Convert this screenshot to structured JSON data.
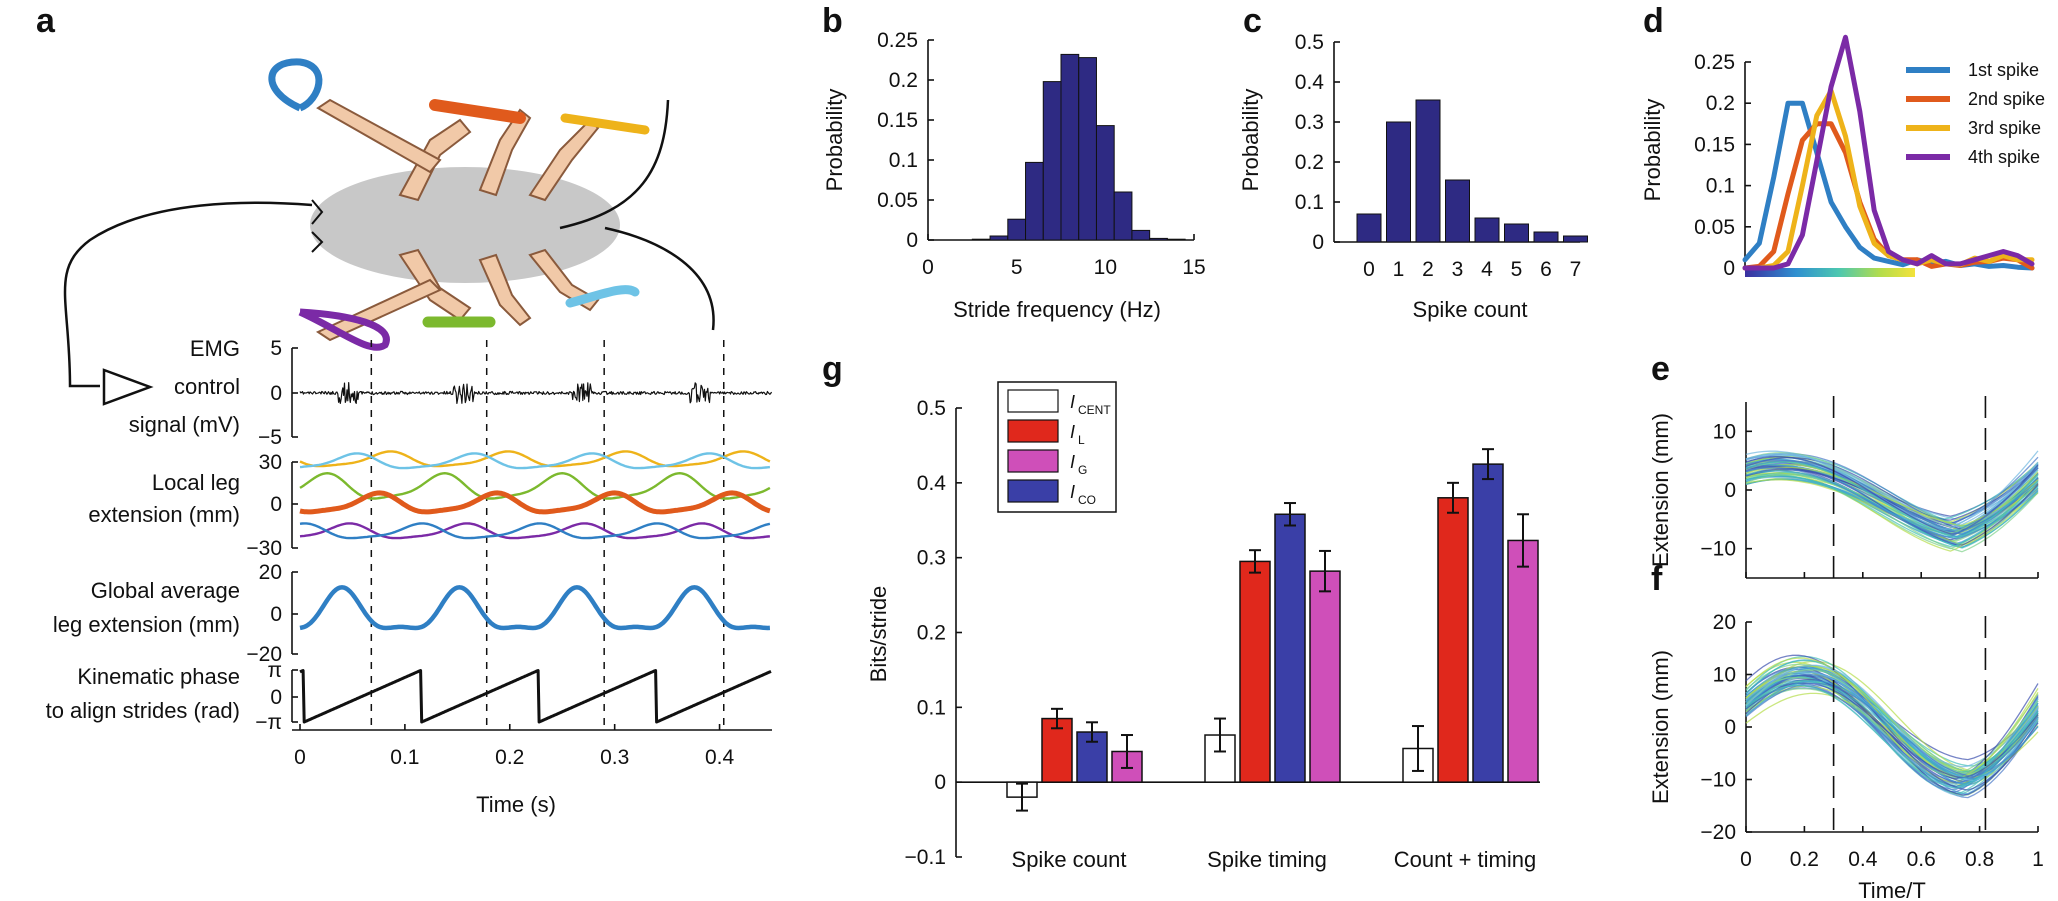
{
  "panel_labels": {
    "a": "a",
    "b": "b",
    "c": "c",
    "d": "d",
    "e": "e",
    "f": "f",
    "g": "g"
  },
  "panel_a": {
    "traces": [
      {
        "label_lines": [
          "EMG",
          "control",
          "signal (mV)"
        ],
        "ticks": [
          "5",
          "0",
          "−5"
        ]
      },
      {
        "label_lines": [
          "Local leg",
          "extension (mm)"
        ],
        "ticks": [
          "30",
          "0",
          "−30"
        ]
      },
      {
        "label_lines": [
          "Global average",
          "leg extension (mm)"
        ],
        "ticks": [
          "20",
          "0",
          "−20"
        ]
      },
      {
        "label_lines": [
          "Kinematic phase",
          "to align strides (rad)"
        ],
        "ticks": [
          "π",
          "0",
          "−π"
        ]
      }
    ],
    "xticks": [
      "0",
      "0.1",
      "0.2",
      "0.3",
      "0.4"
    ],
    "xlabel": "Time (s)",
    "dashed_times": [
      0.068,
      0.178,
      0.29,
      0.404
    ],
    "leg_colors": [
      "#2f7fc4",
      "#e05a1c",
      "#eeb31a",
      "#7b2aa6",
      "#7cb92e",
      "#6ec3e6"
    ]
  },
  "chart_data": [
    {
      "id": "b",
      "type": "bar",
      "title": "",
      "xlabel": "Stride frequency (Hz)",
      "ylabel": "Probability",
      "xlim": [
        0,
        15
      ],
      "ylim": [
        0,
        0.25
      ],
      "xticks": [
        "0",
        "5",
        "10",
        "15"
      ],
      "yticks": [
        "0",
        "0.05",
        "0.1",
        "0.15",
        "0.2",
        "0.25"
      ],
      "x": [
        3,
        4,
        5,
        6,
        7,
        8,
        9,
        10,
        11,
        12,
        13,
        14
      ],
      "values": [
        0.001,
        0.005,
        0.026,
        0.097,
        0.198,
        0.232,
        0.228,
        0.143,
        0.06,
        0.012,
        0.002,
        0.001
      ],
      "color": "#2e2a83"
    },
    {
      "id": "c",
      "type": "bar",
      "title": "",
      "xlabel": "Spike count",
      "ylabel": "Probability",
      "ylim": [
        0,
        0.5
      ],
      "categories": [
        "0",
        "1",
        "2",
        "3",
        "4",
        "5",
        "6",
        "7"
      ],
      "yticks": [
        "0",
        "0.1",
        "0.2",
        "0.3",
        "0.4",
        "0.5"
      ],
      "values": [
        0.07,
        0.3,
        0.355,
        0.155,
        0.06,
        0.045,
        0.025,
        0.015
      ],
      "color": "#2e2a83"
    },
    {
      "id": "d",
      "type": "line",
      "xlabel": "",
      "ylabel": "Probability",
      "ylim": [
        0,
        0.25
      ],
      "yticks": [
        "0",
        "0.05",
        "0.1",
        "0.15",
        "0.2",
        "0.25"
      ],
      "x": [
        0,
        1,
        2,
        3,
        4,
        5,
        6,
        7,
        8,
        9,
        10,
        11,
        12,
        13,
        14,
        15,
        16,
        17,
        18,
        19,
        20
      ],
      "series": [
        {
          "name": "1st spike",
          "color": "#2f7fc4",
          "values": [
            0.01,
            0.03,
            0.11,
            0.2,
            0.2,
            0.14,
            0.08,
            0.05,
            0.025,
            0.012,
            0.008,
            0.004,
            0.01,
            0.006,
            0.008,
            0.003,
            0.005,
            0.002,
            0.003,
            0.001,
            0.0
          ]
        },
        {
          "name": "2nd spike",
          "color": "#e05a1c",
          "values": [
            0.0,
            0.002,
            0.02,
            0.09,
            0.155,
            0.175,
            0.175,
            0.14,
            0.08,
            0.035,
            0.015,
            0.01,
            0.01,
            0.002,
            0.005,
            0.003,
            0.007,
            0.008,
            0.012,
            0.01,
            0.0
          ]
        },
        {
          "name": "3rd spike",
          "color": "#eeb31a",
          "values": [
            0.0,
            0.0,
            0.003,
            0.02,
            0.1,
            0.185,
            0.215,
            0.16,
            0.075,
            0.03,
            0.015,
            0.01,
            0.005,
            0.01,
            0.005,
            0.004,
            0.012,
            0.008,
            0.015,
            0.01,
            0.01
          ]
        },
        {
          "name": "4th spike",
          "color": "#7b2aa6",
          "values": [
            0.0,
            0.0,
            0.0,
            0.005,
            0.04,
            0.13,
            0.22,
            0.28,
            0.19,
            0.07,
            0.02,
            0.01,
            0.005,
            0.015,
            0.005,
            0.005,
            0.01,
            0.015,
            0.02,
            0.015,
            0.005
          ]
        }
      ]
    },
    {
      "id": "e",
      "type": "line",
      "xlabel": "",
      "ylabel": "Extension (mm)",
      "ylim": [
        -15,
        15
      ],
      "yticks": [
        "10",
        "0",
        "−10"
      ],
      "dashed_x": [
        0.3,
        0.82
      ],
      "n_traces": 60
    },
    {
      "id": "f",
      "type": "line",
      "xlabel": "Time/T",
      "ylabel": "Extension (mm)",
      "xlim": [
        0,
        1
      ],
      "ylim": [
        -20,
        20
      ],
      "xticks": [
        "0",
        "0.2",
        "0.4",
        "0.6",
        "0.8",
        "1"
      ],
      "yticks": [
        "20",
        "10",
        "0",
        "−10",
        "−20"
      ],
      "dashed_x": [
        0.3,
        0.82
      ],
      "n_traces": 60
    },
    {
      "id": "g",
      "type": "bar",
      "xlabel": "",
      "ylabel": "Bits/stride",
      "ylim": [
        -0.1,
        0.5
      ],
      "yticks": [
        "0.5",
        "0.4",
        "0.3",
        "0.2",
        "0.1",
        "0",
        "−0.1"
      ],
      "categories": [
        "Spike count",
        "Spike timing",
        "Count + timing"
      ],
      "series": [
        {
          "name": "I",
          "sub": "CENT",
          "color": "#ffffff",
          "values": [
            -0.02,
            0.063,
            0.045
          ],
          "errors": [
            0.018,
            0.022,
            0.03
          ]
        },
        {
          "name": "I",
          "sub": "L",
          "color": "#e0281c",
          "values": [
            0.085,
            0.295,
            0.38
          ],
          "errors": [
            0.013,
            0.015,
            0.02
          ]
        },
        {
          "name": "I",
          "sub": "CO",
          "color": "#3a3fa7",
          "values": [
            0.067,
            0.358,
            0.425
          ],
          "errors": [
            0.013,
            0.015,
            0.02
          ]
        },
        {
          "name": "I",
          "sub": "G",
          "color": "#cf4fb9",
          "values": [
            0.041,
            0.282,
            0.323
          ],
          "errors": [
            0.022,
            0.027,
            0.035
          ]
        }
      ],
      "legend_order": [
        0,
        1,
        3,
        2
      ]
    }
  ]
}
